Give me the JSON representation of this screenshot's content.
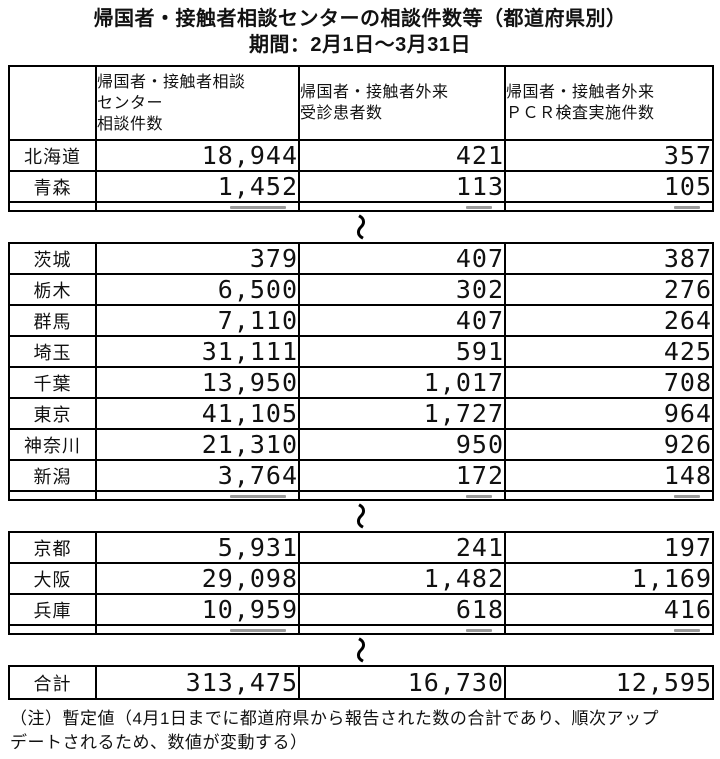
{
  "title": "帰国者・接触者相談センターの相談件数等（都道府県別）",
  "subtitle": "期間：2月1日～3月31日",
  "symbols": {
    "wave": "～"
  },
  "table": {
    "header_cells": [
      {
        "lines": []
      },
      {
        "lines": [
          "帰国者・接触者相談",
          "センター",
          "相談件数"
        ]
      },
      {
        "lines": [
          "帰国者・接触者外来",
          "受診患者数"
        ]
      },
      {
        "lines": [
          "帰国者・接触者外来",
          "ＰＣＲ検査実施件数"
        ]
      }
    ],
    "sections": [
      {
        "rows": [
          [
            "北海道",
            "18,944",
            "421",
            "357"
          ],
          [
            "青森",
            "1,452",
            "113",
            "105"
          ]
        ]
      },
      {
        "rows": [
          [
            "茨城",
            "379",
            "407",
            "387"
          ],
          [
            "栃木",
            "6,500",
            "302",
            "276"
          ],
          [
            "群馬",
            "7,110",
            "407",
            "264"
          ],
          [
            "埼玉",
            "31,111",
            "591",
            "425"
          ],
          [
            "千葉",
            "13,950",
            "1,017",
            "708"
          ],
          [
            "東京",
            "41,105",
            "1,727",
            "964"
          ],
          [
            "神奈川",
            "21,310",
            "950",
            "926"
          ],
          [
            "新潟",
            "3,764",
            "172",
            "148"
          ]
        ]
      },
      {
        "rows": [
          [
            "京都",
            "5,931",
            "241",
            "197"
          ],
          [
            "大阪",
            "29,098",
            "1,482",
            "1,169"
          ],
          [
            "兵庫",
            "10,959",
            "618",
            "416"
          ]
        ]
      },
      {
        "rows": [
          [
            "合計",
            "313,475",
            "16,730",
            "12,595"
          ]
        ]
      }
    ]
  },
  "note": {
    "lines": [
      "（注）暫定値（4月1日までに都道府県から報告された数の合計であり、順次アップ",
      "デートされるため、数値が変動する）"
    ]
  }
}
